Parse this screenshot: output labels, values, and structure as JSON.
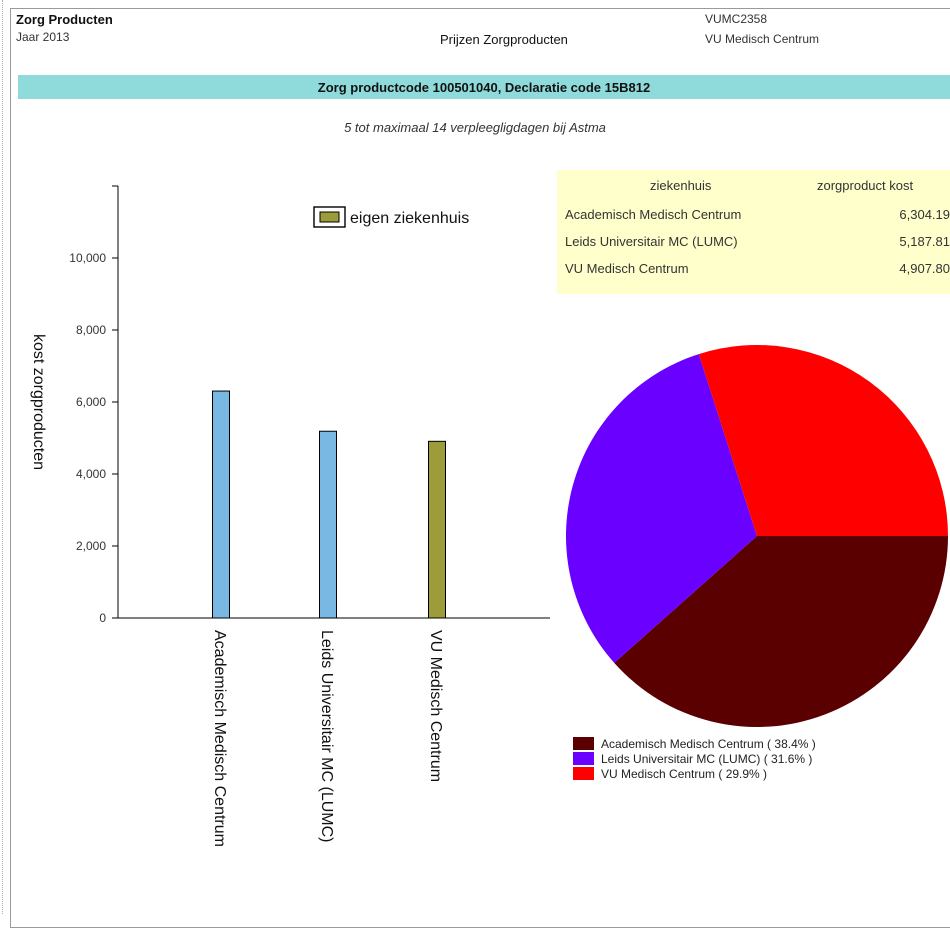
{
  "header": {
    "title": "Zorg Producten",
    "year": "Jaar 2013",
    "report_title": "Prijzen Zorgproducten",
    "hospital_code": "VUMC2358",
    "hospital_name": "VU Medisch Centrum"
  },
  "banner": "Zorg productcode 100501040, Declaratie code 15B812",
  "subtitle": "5 tot maximaal 14 verpleegligdagen bij Astma",
  "colors": {
    "bar_other": "#7ab8e4",
    "bar_own": "#9c9c3a",
    "banner": "#8fdada",
    "table_bg": "#ffffcc",
    "pie_amc": "#5a0000",
    "pie_lumc": "#6a00ff",
    "pie_vumc": "#ff0000"
  },
  "table": {
    "headers": [
      "ziekenhuis",
      "zorgproduct kost"
    ],
    "rows": [
      [
        "Academisch Medisch Centrum",
        "6,304.19"
      ],
      [
        "Leids Universitair MC (LUMC)",
        "5,187.81"
      ],
      [
        "VU Medisch Centrum",
        "4,907.80"
      ]
    ]
  },
  "chart_data": [
    {
      "type": "bar",
      "ylabel": "kost zorgproducten",
      "categories": [
        "Academisch Medisch Centrum",
        "Leids Universitair MC (LUMC)",
        "VU Medisch Centrum"
      ],
      "values": [
        6304.19,
        5187.81,
        4907.8
      ],
      "own_hospital_index": 2,
      "ylim": [
        0,
        12000
      ],
      "yticks": [
        0,
        2000,
        4000,
        6000,
        8000,
        10000
      ],
      "ytick_labels": [
        "0",
        "2,000",
        "4,000",
        "6,000",
        "8,000",
        "10,000"
      ],
      "legend": "eigen ziekenhuis",
      "legend_position": "top-right"
    },
    {
      "type": "pie",
      "labels": [
        "Academisch Medisch Centrum ( 38.4% )",
        "Leids Universitair MC (LUMC) ( 31.6% )",
        "VU Medisch Centrum ( 29.9% )"
      ],
      "values": [
        38.4,
        31.6,
        29.9
      ],
      "legend_position": "bottom"
    }
  ]
}
